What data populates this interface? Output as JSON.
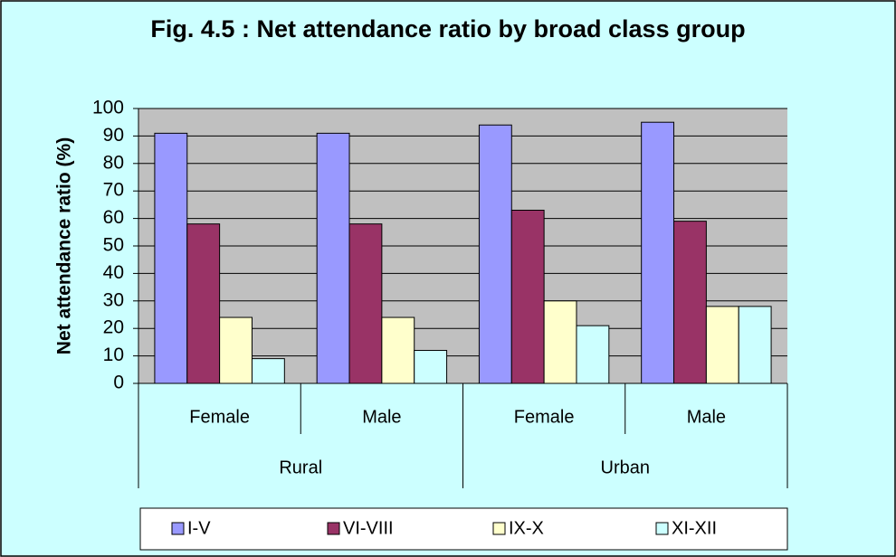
{
  "chart_data": {
    "type": "bar",
    "title": "Fig. 4.5  : Net attendance ratio by broad class group",
    "y_label": "Net attendance ratio (%)",
    "categories": [
      "Female",
      "Male",
      "Female",
      "Male"
    ],
    "groups": [
      "Rural",
      "Urban"
    ],
    "series": [
      {
        "name": "I-V",
        "color": "#9999ff",
        "values": [
          91,
          91,
          94,
          95
        ]
      },
      {
        "name": "VI-VIII",
        "color": "#993366",
        "values": [
          58,
          58,
          63,
          59
        ]
      },
      {
        "name": "IX-X",
        "color": "#ffffcc",
        "values": [
          24,
          24,
          30,
          28
        ]
      },
      {
        "name": "XI-XII",
        "color": "#ccffff",
        "values": [
          9,
          12,
          21,
          28
        ]
      }
    ],
    "ylim": [
      0,
      100
    ],
    "yticks": [
      0,
      10,
      20,
      30,
      40,
      50,
      60,
      70,
      80,
      90,
      100
    ],
    "grid": true,
    "legend": "bottom"
  }
}
